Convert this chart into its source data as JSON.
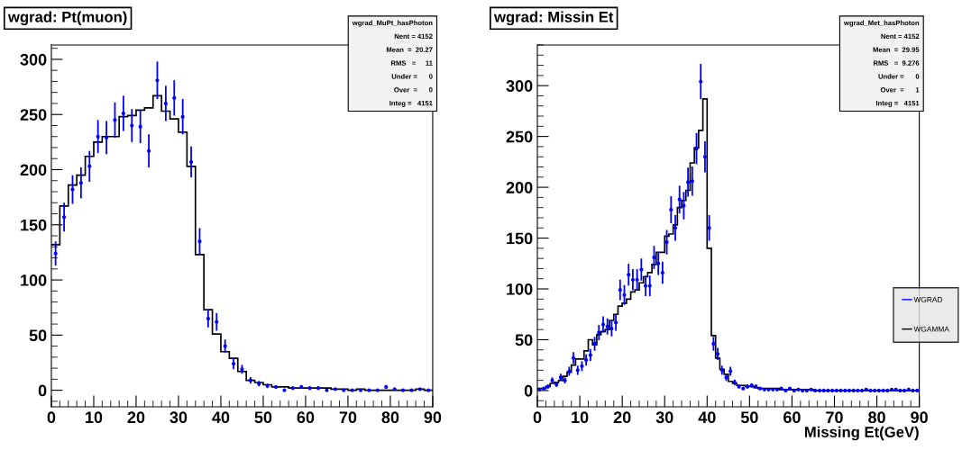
{
  "chart_data": [
    {
      "type": "histogram",
      "title": "wgrad: Pt(muon)",
      "xlim": [
        0,
        90
      ],
      "ylim": [
        -15,
        313
      ],
      "xticks": [
        0,
        10,
        20,
        30,
        40,
        50,
        60,
        70,
        80,
        90
      ],
      "yticks": [
        0,
        50,
        100,
        150,
        200,
        250,
        300
      ],
      "grid": false,
      "marker": "circle",
      "annotations": [
        "wgrad_MuPt_hasPhoton\nNent = 4152\nMean  =  20.27\nRMS   =     11\nUnder =      0\nOver  =      0\nInteg =   4151"
      ],
      "series": [
        {
          "color": "#000000",
          "bins": [
            0,
            2,
            4,
            6,
            8,
            10,
            12,
            14,
            16,
            18,
            20,
            22,
            24,
            26,
            28,
            30,
            32,
            34,
            36,
            38,
            40,
            42,
            44,
            46,
            48,
            50,
            52,
            54,
            56,
            58,
            60,
            62,
            64,
            66,
            68,
            70,
            72,
            74,
            76,
            78,
            80,
            82,
            84,
            86,
            88,
            90
          ],
          "values": [
            132,
            167,
            186,
            195,
            212,
            225,
            230,
            230,
            248,
            249,
            254,
            256,
            267,
            253,
            246,
            234,
            203,
            123,
            73,
            51,
            35,
            29,
            17,
            9,
            7,
            5,
            3,
            3,
            2,
            2,
            2,
            2,
            2,
            1,
            1,
            0,
            1,
            0,
            0,
            0,
            0,
            0,
            0,
            1,
            0
          ]
        },
        {
          "type": "scatter",
          "color": "#0000ff",
          "x": [
            1,
            3,
            5,
            7,
            9,
            11,
            13,
            15,
            17,
            19,
            21,
            23,
            25,
            27,
            29,
            31,
            33,
            35,
            37,
            39,
            41,
            43,
            45,
            47,
            49,
            51,
            53,
            55,
            57,
            59,
            61,
            63,
            65,
            67,
            69,
            71,
            73,
            75,
            77,
            79,
            81,
            83,
            85,
            87,
            89
          ],
          "values": [
            124,
            157,
            182,
            188,
            203,
            230,
            229,
            245,
            251,
            240,
            239,
            217,
            281,
            260,
            265,
            248,
            207,
            135,
            65,
            62,
            40,
            24,
            19,
            9,
            6,
            4,
            3,
            0,
            2,
            3,
            2,
            2,
            0,
            1,
            0,
            0,
            0,
            0,
            0,
            3,
            1,
            0,
            0,
            1,
            0
          ],
          "errors": [
            11,
            13,
            13,
            14,
            14,
            15,
            15,
            16,
            16,
            15,
            15,
            15,
            17,
            16,
            16,
            16,
            14,
            12,
            8,
            8,
            6,
            5,
            4,
            3,
            2.5,
            2,
            1.6,
            null,
            1.2,
            1.7,
            1.4,
            1.4,
            null,
            1,
            null,
            null,
            null,
            null,
            null,
            1.7,
            1,
            null,
            null,
            1,
            null
          ]
        }
      ]
    },
    {
      "type": "histogram",
      "title": "wgrad: Missin Et",
      "xlabel": "Missing Et(GeV)",
      "xlim": [
        0,
        90
      ],
      "ylim": [
        -16,
        340
      ],
      "xticks": [
        0,
        10,
        20,
        30,
        40,
        50,
        60,
        70,
        80,
        90
      ],
      "yticks": [
        0,
        50,
        100,
        150,
        200,
        250,
        300
      ],
      "grid": false,
      "marker": "circle",
      "legend": "right",
      "annotations": [
        "wgrad_Met_hasPhoton\nNent = 4152\nMean  =  29.95\nRMS   =  9.276\nUnder =      0\nOver  =      1\nInteg =   4151"
      ],
      "series": [
        {
          "type": "scatter",
          "name": "WGRAD",
          "color": "#0000ff",
          "x": [
            0.5,
            1.5,
            2.5,
            3.5,
            4.5,
            5.5,
            6.5,
            7.5,
            8.5,
            9.5,
            10.5,
            11.5,
            12.5,
            13.5,
            14.5,
            15.5,
            16.5,
            17.5,
            18.5,
            19.5,
            20.5,
            21.5,
            22.5,
            23.5,
            24.5,
            25.5,
            26.5,
            27.5,
            28.5,
            29.5,
            30.5,
            31.5,
            32.5,
            33.5,
            34.5,
            35.5,
            36.5,
            37.5,
            38.5,
            39.5,
            40.5,
            41.5,
            42.5,
            43.5,
            44.5,
            45.5,
            46.5,
            47.5,
            48.5,
            49.5,
            50.5,
            51.5,
            52.5,
            53.5,
            54.5,
            55.5,
            56.5,
            57.5,
            58.5,
            59.5,
            60.5,
            61.5,
            62.5,
            63.5,
            64.5,
            65.5,
            66.5,
            67.5,
            68.5,
            69.5,
            70.5,
            71.5,
            72.5,
            73.5,
            74.5,
            75.5,
            76.5,
            77.5,
            78.5,
            79.5,
            80.5,
            81.5,
            82.5,
            83.5,
            84.5,
            85.5,
            86.5,
            87.5,
            88.5,
            89.5
          ],
          "values": [
            1,
            2,
            4,
            10,
            6,
            13,
            10,
            19,
            32,
            20,
            24,
            30,
            35,
            46,
            57,
            65,
            63,
            61,
            67,
            99,
            94,
            114,
            109,
            109,
            119,
            103,
            103,
            131,
            125,
            116,
            146,
            178,
            160,
            188,
            182,
            205,
            206,
            238,
            304,
            230,
            160,
            46,
            36,
            20,
            13,
            19,
            8,
            4,
            2,
            4,
            5,
            4,
            2,
            1,
            1,
            1,
            1,
            2,
            0,
            2,
            0,
            1,
            0,
            0,
            1,
            0,
            0,
            0,
            0,
            0,
            0,
            0,
            0,
            0,
            0,
            0,
            0,
            1,
            0,
            0,
            0,
            0,
            0,
            1,
            1,
            0,
            0,
            1,
            0,
            0
          ],
          "errors": [
            1,
            1.2,
            2,
            3,
            2.5,
            3.6,
            3,
            4.4,
            5.7,
            4.5,
            4.9,
            5.5,
            5.9,
            6.8,
            7.5,
            8,
            8,
            7.8,
            8.2,
            10,
            9.7,
            10.7,
            10.4,
            10.4,
            10.9,
            10.1,
            10.1,
            11.4,
            11.2,
            10.8,
            12.1,
            13.3,
            12.6,
            13.7,
            13.5,
            14.3,
            14.4,
            15.4,
            17.4,
            15.2,
            12.6,
            6.8,
            6,
            4.5,
            3.6,
            4.4,
            2.8,
            2,
            1.4,
            2,
            2.1,
            2,
            1.2,
            1,
            1,
            1,
            1,
            1.2,
            null,
            1.2,
            null,
            1,
            null,
            null,
            1,
            null,
            null,
            null,
            null,
            null,
            null,
            null,
            null,
            null,
            null,
            null,
            null,
            1,
            null,
            null,
            null,
            null,
            null,
            1,
            1,
            null,
            null,
            1,
            null,
            null
          ]
        },
        {
          "name": "WGAMMA",
          "color": "#000000",
          "bins": [
            0,
            1,
            2,
            3,
            4,
            5,
            6,
            7,
            8,
            9,
            10,
            11,
            12,
            13,
            14,
            15,
            16,
            17,
            18,
            19,
            20,
            21,
            22,
            23,
            24,
            25,
            26,
            27,
            28,
            29,
            30,
            31,
            32,
            33,
            34,
            35,
            36,
            37,
            38,
            39,
            40,
            41,
            42,
            43,
            44,
            45,
            46,
            47,
            48,
            49,
            50,
            51,
            52,
            53,
            54,
            55,
            56,
            57,
            58,
            59,
            60,
            61,
            62,
            63,
            64,
            65,
            66,
            67,
            68,
            69,
            70,
            71,
            72,
            73,
            74,
            75,
            76,
            77,
            78,
            79,
            80,
            81,
            82,
            83,
            84,
            85,
            86,
            87,
            88,
            89,
            90
          ],
          "values": [
            2,
            2,
            4,
            7,
            8,
            10,
            14,
            18,
            25,
            31,
            31,
            39,
            50,
            45,
            55,
            58,
            60,
            69,
            75,
            83,
            86,
            90,
            97,
            99,
            106,
            112,
            116,
            124,
            136,
            136,
            152,
            154,
            163,
            180,
            187,
            197,
            224,
            239,
            256,
            287,
            140,
            54,
            32,
            21,
            16,
            9,
            7,
            5,
            5,
            4,
            4,
            3,
            2,
            2,
            2,
            2,
            2,
            1,
            1,
            1,
            1,
            1,
            1,
            1,
            1,
            0,
            0,
            0,
            0,
            0,
            0,
            0,
            0,
            0,
            0,
            0,
            0,
            0,
            0,
            0,
            0,
            0,
            0,
            0,
            0,
            0,
            0,
            0,
            0,
            0
          ]
        }
      ]
    }
  ]
}
